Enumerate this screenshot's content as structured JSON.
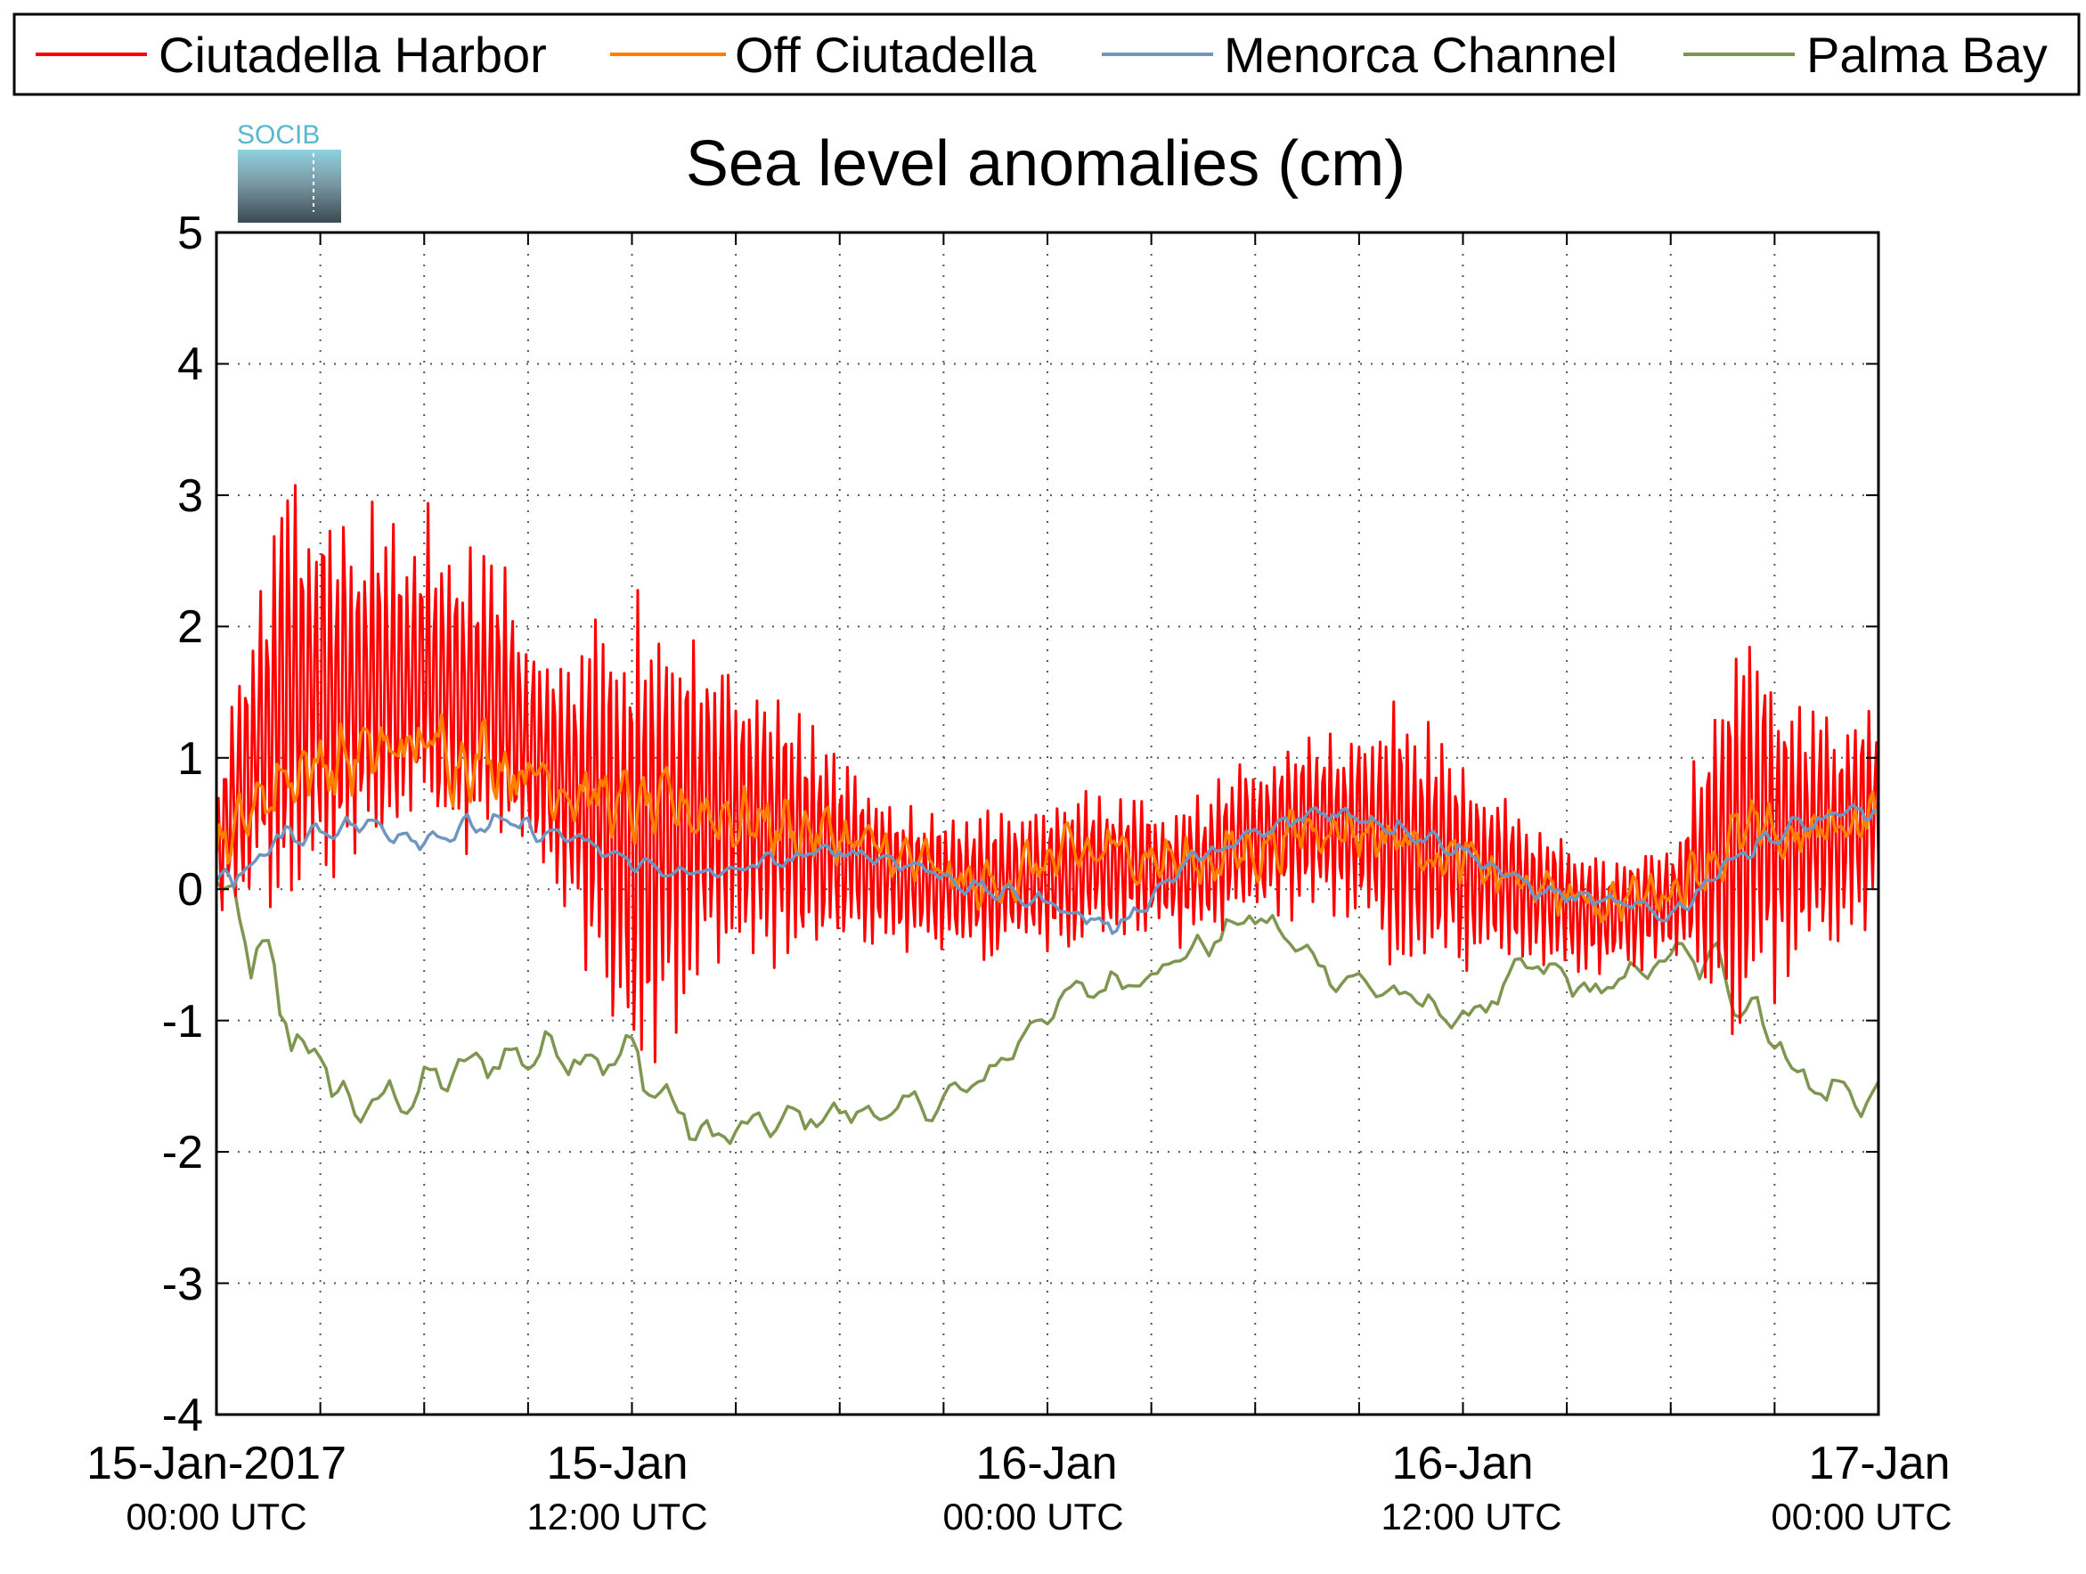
{
  "chart_data": {
    "type": "line",
    "title": "Sea level anomalies (cm)",
    "logo_text": "SOCIB",
    "ylim": [
      -4,
      5
    ],
    "yticks": [
      "-4",
      "-3",
      "-2",
      "-1",
      "0",
      "1",
      "2",
      "3",
      "4",
      "5"
    ],
    "xlim": [
      "15-Jan-2017 00:00",
      "17-Jan-2017 00:00"
    ],
    "x_tick_labels": [
      {
        "main": "15-Jan-2017",
        "sub": "00:00 UTC"
      },
      {
        "main": "15-Jan",
        "sub": "12:00 UTC"
      },
      {
        "main": "16-Jan",
        "sub": "00:00 UTC"
      },
      {
        "main": "16-Jan",
        "sub": "12:00 UTC"
      },
      {
        "main": "17-Jan",
        "sub": "00:00 UTC"
      }
    ],
    "grid": true,
    "legend_position": "top",
    "x": [
      "15-Jan-2017 00:00",
      "15-Jan-2017 02:00",
      "15-Jan-2017 04:00",
      "15-Jan-2017 06:00",
      "15-Jan-2017 08:00",
      "15-Jan-2017 10:00",
      "15-Jan-2017 12:00",
      "15-Jan-2017 14:00",
      "15-Jan-2017 16:00",
      "15-Jan-2017 18:00",
      "15-Jan-2017 20:00",
      "15-Jan-2017 22:00",
      "16-Jan-2017 00:00",
      "16-Jan-2017 02:00",
      "16-Jan-2017 04:00",
      "16-Jan-2017 06:00",
      "16-Jan-2017 08:00",
      "16-Jan-2017 10:00",
      "16-Jan-2017 12:00",
      "16-Jan-2017 14:00",
      "16-Jan-2017 16:00",
      "16-Jan-2017 18:00",
      "16-Jan-2017 20:00",
      "16-Jan-2017 22:00",
      "17-Jan-2017 00:00"
    ],
    "series": [
      {
        "name": "Ciutadella Harbor",
        "color": "#ff0000",
        "values": [
          0.3,
          1.6,
          1.5,
          1.6,
          1.4,
          0.8,
          0.4,
          0.6,
          0.5,
          0.3,
          0.1,
          0.0,
          0.1,
          0.2,
          0.1,
          0.4,
          0.5,
          0.4,
          0.2,
          0.0,
          -0.2,
          -0.1,
          0.5,
          0.4,
          0.6
        ],
        "amplitude": [
          0.6,
          1.8,
          1.6,
          1.4,
          1.2,
          1.0,
          2.4,
          1.4,
          1.2,
          0.8,
          0.6,
          0.6,
          0.7,
          0.6,
          0.6,
          0.7,
          0.8,
          1.1,
          0.9,
          0.6,
          0.5,
          0.5,
          1.8,
          1.0,
          1.0
        ]
      },
      {
        "name": "Off Ciutadella",
        "color": "#ff8000",
        "values": [
          0.3,
          0.9,
          1.0,
          1.1,
          1.0,
          0.8,
          0.6,
          0.6,
          0.5,
          0.4,
          0.2,
          0.0,
          0.2,
          0.3,
          0.2,
          0.3,
          0.5,
          0.4,
          0.2,
          0.0,
          -0.1,
          0.0,
          0.4,
          0.4,
          0.6
        ],
        "amplitude": [
          0.3,
          0.4,
          0.35,
          0.35,
          0.35,
          0.3,
          0.3,
          0.3,
          0.3,
          0.25,
          0.25,
          0.25,
          0.25,
          0.25,
          0.25,
          0.25,
          0.25,
          0.25,
          0.25,
          0.2,
          0.2,
          0.2,
          0.3,
          0.25,
          0.25
        ]
      },
      {
        "name": "Menorca Channel",
        "color": "#6e96c0",
        "values": [
          0.0,
          0.4,
          0.5,
          0.4,
          0.5,
          0.4,
          0.2,
          0.1,
          0.2,
          0.3,
          0.2,
          0.0,
          -0.1,
          -0.3,
          0.2,
          0.4,
          0.6,
          0.5,
          0.3,
          0.0,
          -0.1,
          -0.2,
          0.3,
          0.5,
          0.6
        ],
        "amplitude": [
          0.15,
          0.1,
          0.1,
          0.1,
          0.1,
          0.1,
          0.08,
          0.08,
          0.08,
          0.08,
          0.08,
          0.08,
          0.08,
          0.08,
          0.08,
          0.1,
          0.1,
          0.1,
          0.08,
          0.08,
          0.08,
          0.08,
          0.12,
          0.1,
          0.1
        ]
      },
      {
        "name": "Palma Bay",
        "color": "#7f9650",
        "values": [
          0.0,
          -1.0,
          -1.7,
          -1.5,
          -1.3,
          -1.2,
          -1.3,
          -1.9,
          -1.8,
          -1.7,
          -1.7,
          -1.5,
          -0.9,
          -0.7,
          -0.5,
          -0.2,
          -0.6,
          -0.8,
          -1.0,
          -0.6,
          -0.8,
          -0.5,
          -0.7,
          -1.5,
          -1.6
        ],
        "amplitude": [
          0.4,
          0.4,
          0.2,
          0.2,
          0.2,
          0.2,
          0.25,
          0.2,
          0.15,
          0.15,
          0.15,
          0.15,
          0.15,
          0.15,
          0.15,
          0.15,
          0.15,
          0.15,
          0.15,
          0.15,
          0.15,
          0.15,
          0.3,
          0.2,
          0.2
        ]
      }
    ]
  }
}
